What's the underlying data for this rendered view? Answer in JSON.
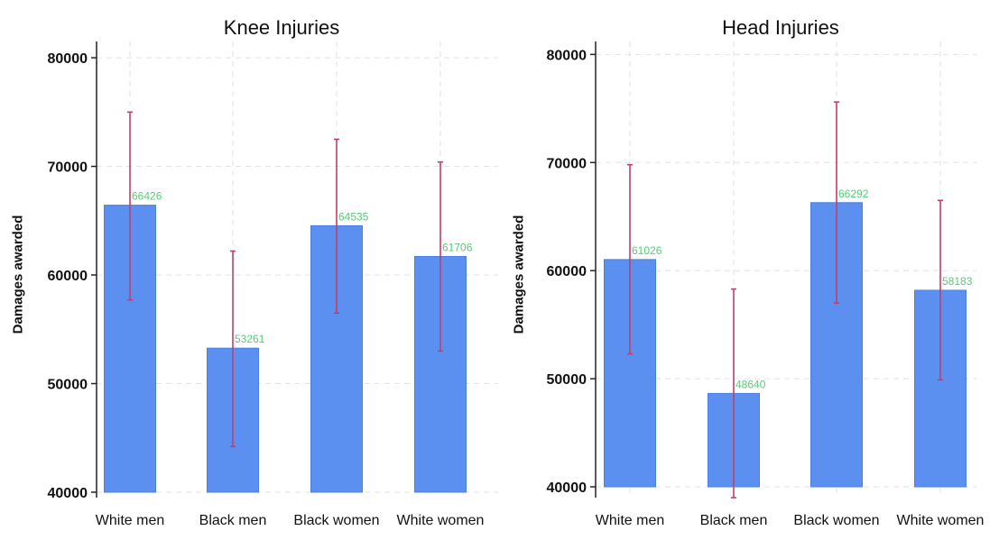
{
  "chart_data": [
    {
      "type": "bar",
      "title": "Knee Injuries",
      "ylabel": "Damages awarded",
      "xlabel": "",
      "categories": [
        "White men",
        "Black men",
        "Black women",
        "White women"
      ],
      "values": [
        66426,
        53261,
        64535,
        61706
      ],
      "value_labels": [
        "66426",
        "53261",
        "64535",
        "61706"
      ],
      "error_low": [
        57700,
        44200,
        56500,
        53000
      ],
      "error_high": [
        75000,
        62200,
        72500,
        70400
      ],
      "ylim": [
        39500,
        81500
      ],
      "yticks": [
        40000,
        50000,
        60000,
        70000,
        80000
      ],
      "grid": true,
      "colors": {
        "bar": "#5b8ff0",
        "bar_edge": "#4a7fe6",
        "error": "#c0406a",
        "value_label": "#55cc77",
        "grid": "#e2e2e2"
      }
    },
    {
      "type": "bar",
      "title": "Head Injuries",
      "ylabel": "Damages awarded",
      "xlabel": "",
      "categories": [
        "White men",
        "Black men",
        "Black women",
        "White women"
      ],
      "values": [
        61026,
        48640,
        66292,
        58183
      ],
      "value_labels": [
        "61026",
        "48640",
        "66292",
        "58183"
      ],
      "error_low": [
        52300,
        39000,
        57000,
        49900
      ],
      "error_high": [
        69800,
        58300,
        75600,
        66500
      ],
      "ylim": [
        39000,
        81200
      ],
      "yticks": [
        40000,
        50000,
        60000,
        70000,
        80000
      ],
      "grid": true,
      "colors": {
        "bar": "#5b8ff0",
        "bar_edge": "#4a7fe6",
        "error": "#c0406a",
        "value_label": "#55cc77",
        "grid": "#e2e2e2"
      }
    }
  ]
}
